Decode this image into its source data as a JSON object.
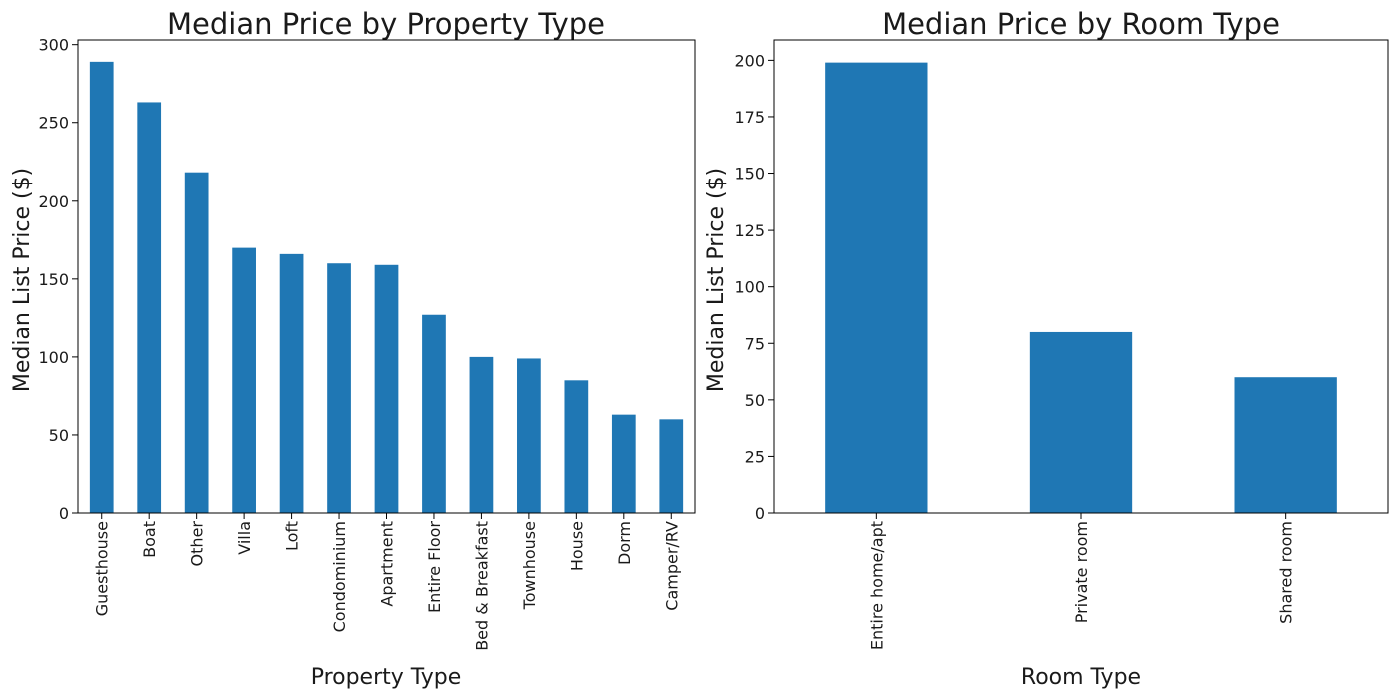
{
  "chart_data": [
    {
      "type": "bar",
      "title": "Median Price by Property Type",
      "xlabel": "Property Type",
      "ylabel": "Median List Price ($)",
      "categories": [
        "Guesthouse",
        "Boat",
        "Other",
        "Villa",
        "Loft",
        "Condominium",
        "Apartment",
        "Entire Floor",
        "Bed & Breakfast",
        "Townhouse",
        "House",
        "Dorm",
        "Camper/RV"
      ],
      "values": [
        289,
        263,
        218,
        170,
        166,
        160,
        159,
        127,
        100,
        99,
        85,
        63,
        60
      ],
      "yticks": [
        0,
        50,
        100,
        150,
        200,
        250,
        300
      ],
      "ylim": [
        0,
        303
      ],
      "color": "#1f77b4",
      "grid": false,
      "legend": "none"
    },
    {
      "type": "bar",
      "title": "Median Price by Room Type",
      "xlabel": "Room Type",
      "ylabel": "Median List Price ($)",
      "categories": [
        "Entire home/apt",
        "Private room",
        "Shared room"
      ],
      "values": [
        199,
        80,
        60
      ],
      "yticks": [
        0,
        25,
        50,
        75,
        100,
        125,
        150,
        175,
        200
      ],
      "ylim": [
        0,
        209
      ],
      "color": "#1f77b4",
      "grid": false,
      "legend": "none"
    }
  ]
}
